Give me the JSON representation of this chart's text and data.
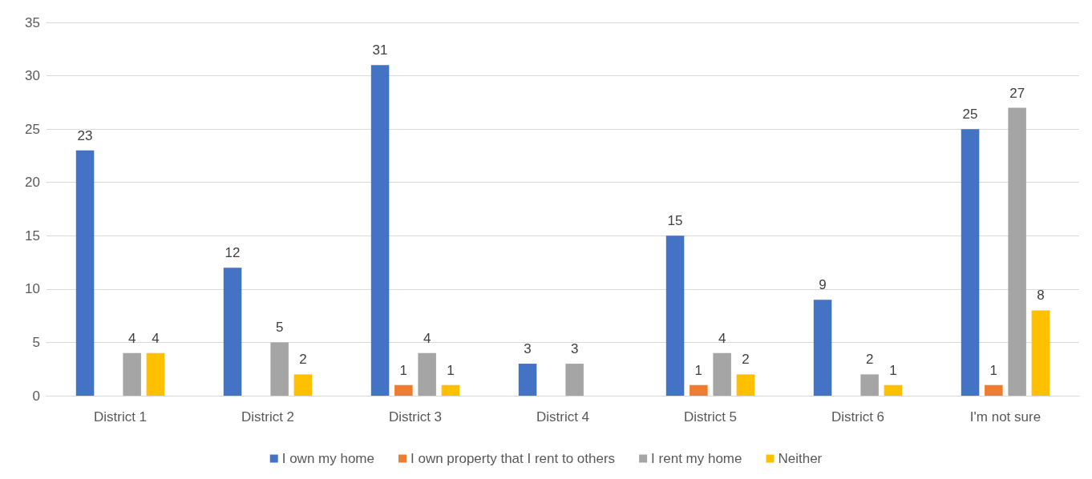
{
  "chart_data": {
    "type": "bar",
    "categories": [
      "District 1",
      "District 2",
      "District 3",
      "District 4",
      "District 5",
      "District 6",
      "I'm not sure"
    ],
    "series": [
      {
        "name": "I own my home",
        "color": "#4472c4",
        "values": [
          23,
          12,
          31,
          3,
          15,
          9,
          25
        ]
      },
      {
        "name": "I own property that I rent to others",
        "color": "#ed7d31",
        "values": [
          null,
          null,
          1,
          null,
          1,
          null,
          1
        ]
      },
      {
        "name": "I rent my home",
        "color": "#a5a5a5",
        "values": [
          4,
          5,
          4,
          3,
          4,
          2,
          27
        ]
      },
      {
        "name": "Neither",
        "color": "#ffc000",
        "values": [
          4,
          2,
          1,
          null,
          2,
          1,
          8
        ]
      }
    ],
    "ylim": [
      0,
      35
    ],
    "yticks": [
      0,
      5,
      10,
      15,
      20,
      25,
      30,
      35
    ],
    "grid": "y",
    "legend": "bottom",
    "data_labels": true
  }
}
